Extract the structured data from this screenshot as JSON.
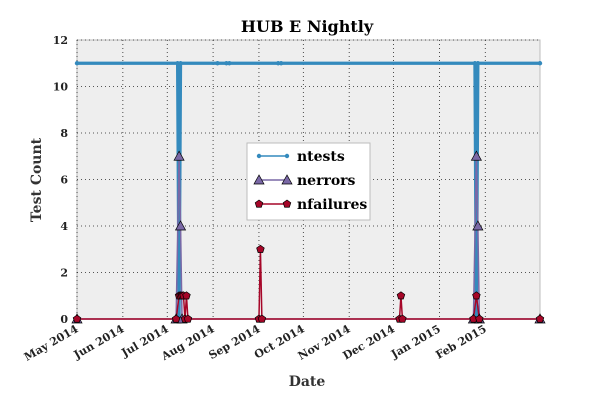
{
  "chart_data": {
    "type": "line",
    "title": "HUB E Nightly",
    "xlabel": "Date",
    "ylabel": "Test Count",
    "ylim": [
      0,
      12
    ],
    "yticks": [
      0,
      2,
      4,
      6,
      8,
      10,
      12
    ],
    "xlim": [
      "2014-05-01",
      "2015-03-10"
    ],
    "xticks": [
      {
        "date": "2014-05-01",
        "label": "May 2014"
      },
      {
        "date": "2014-06-01",
        "label": "Jun 2014"
      },
      {
        "date": "2014-07-01",
        "label": "Jul 2014"
      },
      {
        "date": "2014-08-01",
        "label": "Aug 2014"
      },
      {
        "date": "2014-09-01",
        "label": "Sep 2014"
      },
      {
        "date": "2014-10-01",
        "label": "Oct 2014"
      },
      {
        "date": "2014-11-01",
        "label": "Nov 2014"
      },
      {
        "date": "2014-12-01",
        "label": "Dec 2014"
      },
      {
        "date": "2015-01-01",
        "label": "Jan 2015"
      },
      {
        "date": "2015-02-01",
        "label": "Feb 2015"
      }
    ],
    "grid": true,
    "legend_position": "center",
    "series": [
      {
        "name": "ntests",
        "color": "#348abd",
        "marker": "circle",
        "points": [
          [
            "2014-05-01",
            11
          ],
          [
            "2014-07-08",
            11
          ],
          [
            "2014-07-09",
            0
          ],
          [
            "2014-07-10",
            11
          ],
          [
            "2014-08-04",
            11
          ],
          [
            "2014-08-10",
            11
          ],
          [
            "2014-08-12",
            11
          ],
          [
            "2014-09-14",
            11
          ],
          [
            "2014-09-16",
            11
          ],
          [
            "2015-01-25",
            11
          ],
          [
            "2015-01-26",
            0
          ],
          [
            "2015-01-27",
            11
          ],
          [
            "2015-03-10",
            11
          ]
        ]
      },
      {
        "name": "nerrors",
        "color": "#7a68a6",
        "marker": "triangle",
        "points": [
          [
            "2014-05-01",
            0
          ],
          [
            "2014-07-07",
            0
          ],
          [
            "2014-07-09",
            7
          ],
          [
            "2014-07-10",
            4
          ],
          [
            "2014-07-11",
            0
          ],
          [
            "2015-01-24",
            0
          ],
          [
            "2015-01-26",
            7
          ],
          [
            "2015-01-27",
            4
          ],
          [
            "2015-01-28",
            0
          ],
          [
            "2015-03-10",
            0
          ]
        ]
      },
      {
        "name": "nfailures",
        "color": "#a60628",
        "marker": "pentagon",
        "points": [
          [
            "2014-05-01",
            0
          ],
          [
            "2014-07-07",
            0
          ],
          [
            "2014-07-09",
            1
          ],
          [
            "2014-07-10",
            1
          ],
          [
            "2014-07-11",
            1
          ],
          [
            "2014-07-12",
            1
          ],
          [
            "2014-07-13",
            0
          ],
          [
            "2014-07-14",
            1
          ],
          [
            "2014-07-15",
            0
          ],
          [
            "2014-09-01",
            0
          ],
          [
            "2014-09-02",
            3
          ],
          [
            "2014-09-03",
            0
          ],
          [
            "2014-12-05",
            0
          ],
          [
            "2014-12-06",
            1
          ],
          [
            "2014-12-07",
            0
          ],
          [
            "2015-01-24",
            0
          ],
          [
            "2015-01-26",
            1
          ],
          [
            "2015-01-28",
            0
          ],
          [
            "2015-03-10",
            0
          ]
        ]
      }
    ]
  }
}
